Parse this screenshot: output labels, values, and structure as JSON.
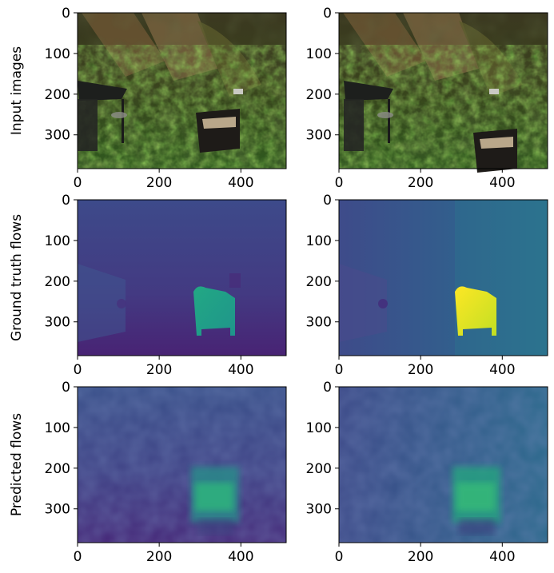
{
  "chart_data": [
    {
      "type": "image",
      "row": 0,
      "col": 0,
      "ylabel": "Input images",
      "content": "forest-scene-photo",
      "xticks": [
        0,
        200,
        400
      ],
      "yticks": [
        0,
        100,
        200,
        300
      ],
      "xlim": [
        0,
        511
      ],
      "ylim": [
        383,
        0
      ]
    },
    {
      "type": "image",
      "row": 0,
      "col": 1,
      "ylabel": "",
      "content": "forest-scene-photo",
      "xticks": [
        0,
        200,
        400
      ],
      "yticks": [
        0,
        100,
        200,
        300
      ],
      "xlim": [
        0,
        511
      ],
      "ylim": [
        383,
        0
      ]
    },
    {
      "type": "heatmap",
      "row": 1,
      "col": 0,
      "ylabel": "Ground truth flows",
      "colormap": "viridis",
      "xticks": [
        0,
        200,
        400
      ],
      "yticks": [
        0,
        100,
        200,
        300
      ],
      "xlim": [
        0,
        511
      ],
      "ylim": [
        383,
        0
      ]
    },
    {
      "type": "heatmap",
      "row": 1,
      "col": 1,
      "ylabel": "",
      "colormap": "viridis",
      "xticks": [
        0,
        200,
        400
      ],
      "yticks": [
        0,
        100,
        200,
        300
      ],
      "xlim": [
        0,
        511
      ],
      "ylim": [
        383,
        0
      ]
    },
    {
      "type": "heatmap",
      "row": 2,
      "col": 0,
      "ylabel": "Predicted flows",
      "colormap": "viridis",
      "xticks": [
        0,
        200,
        400
      ],
      "yticks": [
        0,
        100,
        200,
        300
      ],
      "xlim": [
        0,
        511
      ],
      "ylim": [
        383,
        0
      ]
    },
    {
      "type": "heatmap",
      "row": 2,
      "col": 1,
      "ylabel": "",
      "colormap": "viridis",
      "xticks": [
        0,
        200,
        400
      ],
      "yticks": [
        0,
        100,
        200,
        300
      ],
      "xlim": [
        0,
        511
      ],
      "ylim": [
        383,
        0
      ]
    }
  ],
  "colors": {
    "forest_dark": "#2c3018",
    "forest_moss": "#5c6a2a",
    "forest_leaf": "#4f8a32",
    "viridis_low": "#481f70",
    "viridis_mid": "#31668e",
    "viridis_teal": "#21918c",
    "viridis_green": "#35b779",
    "viridis_high": "#fde725"
  }
}
